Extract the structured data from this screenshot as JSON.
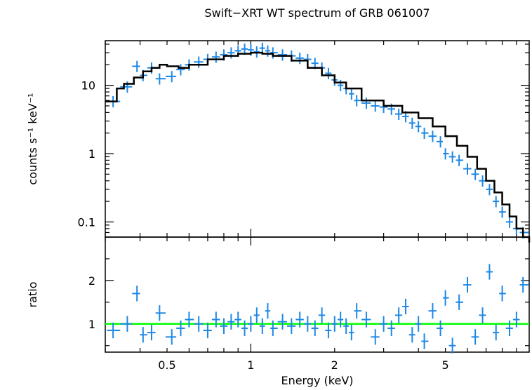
{
  "chart_data": [
    {
      "type": "scatter",
      "title": "Swift−XRT WT spectrum of GRB 061007",
      "xlabel": "",
      "ylabel": "counts s⁻¹ keV⁻¹",
      "xscale": "log",
      "yscale": "log",
      "xlim": [
        0.3,
        10
      ],
      "ylim": [
        0.06,
        45
      ],
      "x_ticks": [],
      "y_ticks": [
        {
          "value": 10,
          "label": "10"
        },
        {
          "value": 1,
          "label": "1"
        },
        {
          "value": 0.1,
          "label": "0.1"
        }
      ],
      "series": [
        {
          "kind": "data-with-errorbars",
          "color": "#1e88e5",
          "x": [
            0.32,
            0.36,
            0.39,
            0.41,
            0.44,
            0.47,
            0.52,
            0.56,
            0.6,
            0.65,
            0.7,
            0.75,
            0.8,
            0.85,
            0.9,
            0.95,
            1.0,
            1.05,
            1.1,
            1.15,
            1.2,
            1.3,
            1.4,
            1.5,
            1.6,
            1.7,
            1.8,
            1.9,
            2.0,
            2.1,
            2.2,
            2.3,
            2.4,
            2.6,
            2.8,
            3.0,
            3.2,
            3.4,
            3.6,
            3.8,
            4.0,
            4.2,
            4.5,
            4.8,
            5.0,
            5.3,
            5.6,
            6.0,
            6.4,
            6.8,
            7.2,
            7.6,
            8.0,
            8.5,
            9.0,
            9.5
          ],
          "y": [
            5.8,
            9.5,
            19.0,
            14.0,
            18.0,
            12.5,
            13.5,
            17.0,
            20.0,
            22.0,
            24.0,
            26.0,
            28.0,
            30.0,
            32.0,
            34.0,
            33.0,
            31.0,
            35.0,
            32.0,
            30.0,
            28.0,
            27.0,
            25.0,
            24.0,
            21.0,
            18.0,
            15.0,
            12.0,
            10.0,
            9.0,
            7.5,
            6.0,
            5.5,
            5.0,
            4.8,
            4.5,
            3.8,
            3.5,
            2.8,
            2.5,
            2.0,
            1.8,
            1.5,
            1.0,
            0.9,
            0.8,
            0.6,
            0.5,
            0.4,
            0.3,
            0.2,
            0.14,
            0.1,
            0.08,
            0.07
          ]
        },
        {
          "kind": "model",
          "color": "#000000",
          "x": [
            0.3,
            0.33,
            0.35,
            0.38,
            0.41,
            0.44,
            0.47,
            0.5,
            0.55,
            0.6,
            0.7,
            0.8,
            0.9,
            1.0,
            1.1,
            1.2,
            1.4,
            1.6,
            1.8,
            2.0,
            2.2,
            2.5,
            3.0,
            3.5,
            4.0,
            4.5,
            5.0,
            5.5,
            6.0,
            6.5,
            7.0,
            7.5,
            8.0,
            8.5,
            9.0,
            9.5,
            10.0
          ],
          "y": [
            5.8,
            9.0,
            10.5,
            13.0,
            16.0,
            18.0,
            20.0,
            19.0,
            18.0,
            20.0,
            24.0,
            27.0,
            29.0,
            30.0,
            29.0,
            27.0,
            23.0,
            18.0,
            14.0,
            11.0,
            9.0,
            6.0,
            5.0,
            4.0,
            3.3,
            2.5,
            1.8,
            1.3,
            0.9,
            0.6,
            0.4,
            0.27,
            0.18,
            0.12,
            0.08,
            0.06,
            0.05
          ]
        }
      ]
    },
    {
      "type": "scatter",
      "title": "",
      "xlabel": "Energy (keV)",
      "ylabel": "ratio",
      "xscale": "log",
      "yscale": "linear",
      "xlim": [
        0.3,
        10
      ],
      "ylim": [
        0.35,
        3.0
      ],
      "x_ticks": [
        {
          "value": 0.5,
          "label": "0.5"
        },
        {
          "value": 1,
          "label": "1"
        },
        {
          "value": 2,
          "label": "2"
        },
        {
          "value": 5,
          "label": "5"
        }
      ],
      "y_ticks": [
        {
          "value": 1,
          "label": "1"
        },
        {
          "value": 2,
          "label": "2"
        }
      ],
      "reference_line": {
        "value": 1.0,
        "color": "#00ff00"
      },
      "series": [
        {
          "kind": "data-with-errorbars",
          "color": "#1e88e5",
          "x": [
            0.32,
            0.36,
            0.39,
            0.41,
            0.44,
            0.47,
            0.52,
            0.56,
            0.6,
            0.65,
            0.7,
            0.75,
            0.8,
            0.85,
            0.9,
            0.95,
            1.0,
            1.05,
            1.1,
            1.15,
            1.2,
            1.3,
            1.4,
            1.5,
            1.6,
            1.7,
            1.8,
            1.9,
            2.0,
            2.1,
            2.2,
            2.3,
            2.4,
            2.6,
            2.8,
            3.0,
            3.2,
            3.4,
            3.6,
            3.8,
            4.0,
            4.2,
            4.5,
            4.8,
            5.0,
            5.3,
            5.6,
            6.0,
            6.4,
            6.8,
            7.2,
            7.6,
            8.0,
            8.5,
            9.0,
            9.5
          ],
          "y": [
            0.85,
            1.0,
            1.7,
            0.75,
            0.8,
            1.25,
            0.7,
            0.9,
            1.1,
            1.0,
            0.85,
            1.1,
            0.95,
            1.05,
            1.1,
            0.9,
            1.0,
            1.2,
            0.95,
            1.3,
            0.9,
            1.05,
            0.95,
            1.1,
            1.0,
            0.9,
            1.2,
            0.85,
            1.0,
            1.1,
            0.95,
            0.8,
            1.3,
            1.1,
            0.7,
            1.0,
            0.9,
            1.2,
            1.4,
            0.75,
            1.0,
            0.6,
            1.3,
            0.9,
            1.6,
            0.5,
            1.5,
            1.9,
            0.7,
            1.2,
            2.2,
            0.8,
            1.7,
            0.9,
            1.1,
            1.9
          ]
        }
      ]
    }
  ]
}
